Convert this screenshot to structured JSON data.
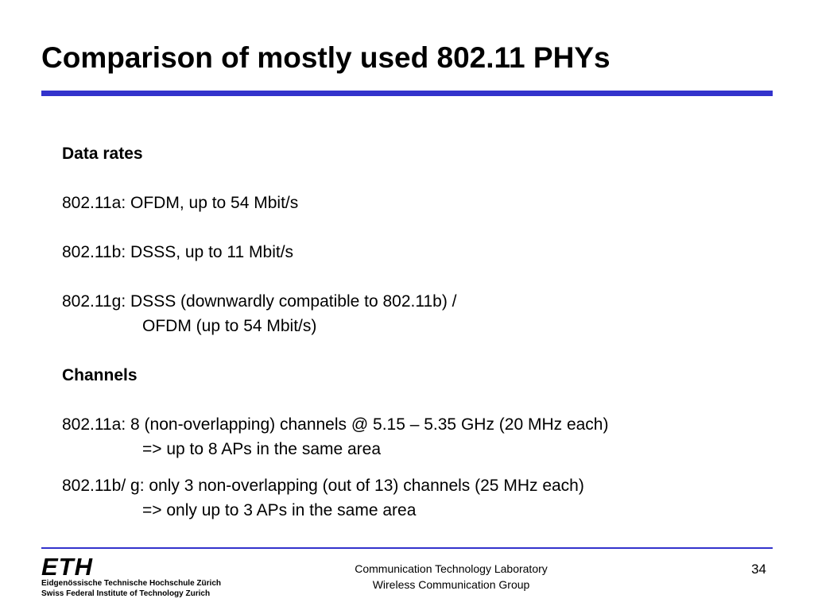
{
  "slide": {
    "title": "Comparison of mostly used 802.11 PHYs",
    "data_rates_heading": "Data rates",
    "line_11a_rate": "802.11a: OFDM, up to 54 Mbit/s",
    "line_11b_rate": "802.11b: DSSS, up to 11 Mbit/s",
    "line_11g_rate_1": "802.11g: DSSS  (downwardly compatible to 802.11b) /",
    "line_11g_rate_2": "OFDM (up to 54 Mbit/s)",
    "channels_heading": "Channels",
    "line_11a_ch_1": "802.11a: 8 (non-overlapping) channels @ 5.15 – 5.35 GHz (20 MHz each)",
    "line_11a_ch_2": "=> up to 8 APs in the same area",
    "line_11bg_ch_1": "802.11b/ g: only 3 non-overlapping (out of 13)  channels (25 MHz each)",
    "line_11bg_ch_2": "=> only up to 3 APs in the same area"
  },
  "footer": {
    "logo_mark": "ETH",
    "logo_line_1": "Eidgenössische Technische Hochschule Zürich",
    "logo_line_2": "Swiss Federal Institute of Technology Zurich",
    "lab_line_1": "Communication Technology Laboratory",
    "lab_line_2": "Wireless Communication Group",
    "page_number": "34"
  },
  "colors": {
    "accent_rule": "#3333cc"
  }
}
